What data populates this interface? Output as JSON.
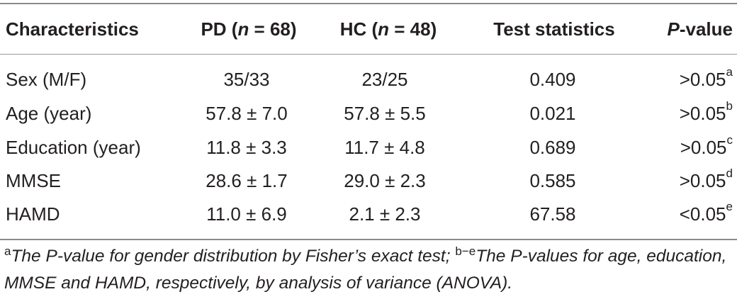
{
  "table": {
    "headers": {
      "characteristics": "Characteristics",
      "pd_prefix": "PD (",
      "pd_n": "n",
      "pd_suffix": " = 68)",
      "hc_prefix": "HC (",
      "hc_n": "n",
      "hc_suffix": " = 48)",
      "test": "Test statistics",
      "p_prefix": "P",
      "p_suffix": "-value"
    },
    "rows": [
      {
        "label": "Sex (M/F)",
        "pd": "35/33",
        "hc": "23/25",
        "test": "0.409",
        "p": ">0.05",
        "sup": "a"
      },
      {
        "label": "Age (year)",
        "pd": "57.8 ± 7.0",
        "hc": "57.8 ± 5.5",
        "test": "0.021",
        "p": ">0.05",
        "sup": "b"
      },
      {
        "label": "Education (year)",
        "pd": "11.8 ± 3.3",
        "hc": "11.7 ± 4.8",
        "test": "0.689",
        "p": ">0.05",
        "sup": "c"
      },
      {
        "label": "MMSE",
        "pd": "28.6 ± 1.7",
        "hc": "29.0 ± 2.3",
        "test": "0.585",
        "p": ">0.05",
        "sup": "d"
      },
      {
        "label": "HAMD",
        "pd": "11.0 ± 6.9",
        "hc": "2.1 ± 2.3",
        "test": "67.58",
        "p": "<0.05",
        "sup": "e"
      }
    ]
  },
  "footnote": {
    "sup_a": "a",
    "text_a": "The P-value for gender distribution by Fisher’s exact test; ",
    "sup_be": "b−e",
    "text_be": "The P-values for age, education, MMSE and HAMD, respectively, by analysis of variance (ANOVA)."
  }
}
